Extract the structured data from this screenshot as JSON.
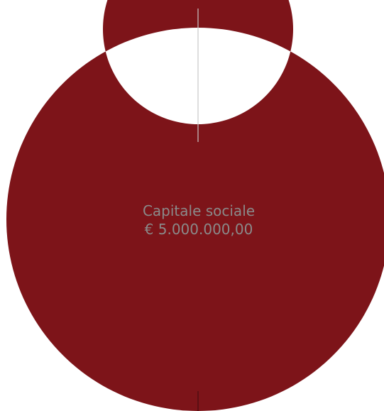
{
  "chart_data": {
    "type": "pie",
    "variant": "donut",
    "center_label": {
      "line1": "Capitale sociale",
      "line2": "€ 5.000.000,00"
    },
    "slices": [
      {
        "value": 100,
        "color": "#7d1419"
      }
    ],
    "total": 5000000,
    "legend": "none"
  },
  "colors": {
    "slice": "#7d1419",
    "background": "#ffffff",
    "center_text": "#8a8a8a",
    "marker_line": "#c8c8c8"
  }
}
